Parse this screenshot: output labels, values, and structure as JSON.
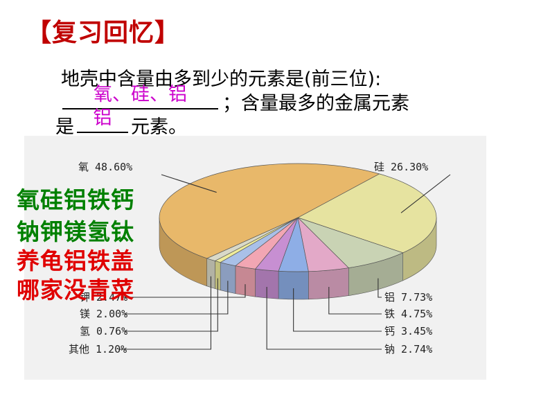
{
  "title": "【复习回忆】",
  "question": {
    "line1": "地壳中含量由多到少的元素是(前三位):",
    "answer1": "氧、硅、铝",
    "line2_after": "；含量最多的金属元素",
    "line3_before": "是",
    "answer2": "铝",
    "line3_after": "元素。"
  },
  "mnemonic": [
    "氧硅铝铁钙",
    "钠钾镁氢钛",
    "养龟铝铁盖",
    "哪家没青菜"
  ],
  "chart_data": {
    "type": "pie",
    "title": "",
    "slices": [
      {
        "label": "氧",
        "value": 48.6,
        "display": "氧 48.60%",
        "color": "#e8b86a"
      },
      {
        "label": "硅",
        "value": 26.3,
        "display": "硅 26.30%",
        "color": "#e6e3a0"
      },
      {
        "label": "铝",
        "value": 7.73,
        "display": "铝 7.73%",
        "color": "#c9d3b4"
      },
      {
        "label": "铁",
        "value": 4.75,
        "display": "铁 4.75%",
        "color": "#e3a9c8"
      },
      {
        "label": "钙",
        "value": 3.45,
        "display": "钙 3.45%",
        "color": "#8eaee6"
      },
      {
        "label": "钠",
        "value": 2.74,
        "display": "钠 2.74%",
        "color": "#c78fd2"
      },
      {
        "label": "钾",
        "value": 2.47,
        "display": "钾 2.47%",
        "color": "#f2a6b3"
      },
      {
        "label": "镁",
        "value": 2.0,
        "display": "镁 2.00%",
        "color": "#a9c0e8"
      },
      {
        "label": "氢",
        "value": 0.76,
        "display": "氢 0.76%",
        "color": "#eeeb9a"
      },
      {
        "label": "其他",
        "value": 1.2,
        "display": "其他 1.20%",
        "color": "#d9d9c8"
      }
    ]
  }
}
